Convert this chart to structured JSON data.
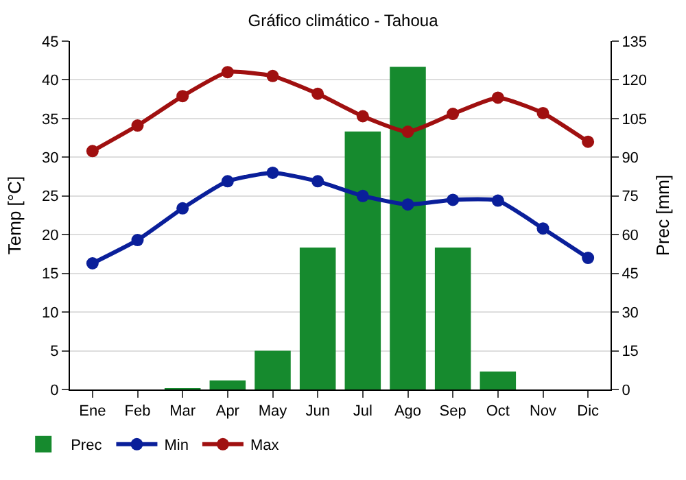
{
  "chart_data": {
    "type": "line",
    "title": "Gráfico climático - Tahoua",
    "ylabel": "Temp [°C]",
    "y2label": "Prec [mm]",
    "categories": [
      "Ene",
      "Feb",
      "Mar",
      "Apr",
      "May",
      "Jun",
      "Jul",
      "Ago",
      "Sep",
      "Oct",
      "Nov",
      "Dic"
    ],
    "series": [
      {
        "name": "Prec",
        "type": "bar",
        "axis": "y2",
        "color": "#168a2e",
        "values": [
          0,
          0,
          0.5,
          3.5,
          15,
          55,
          100,
          125,
          55,
          7,
          0,
          0
        ]
      },
      {
        "name": "Min",
        "color": "#0a1f9a",
        "values": [
          16.3,
          19.3,
          23.4,
          26.9,
          28.0,
          26.9,
          25.0,
          23.9,
          24.5,
          24.4,
          20.8,
          17.0
        ]
      },
      {
        "name": "Max",
        "color": "#a01010",
        "values": [
          30.8,
          34.1,
          37.9,
          41.0,
          40.5,
          38.2,
          35.3,
          33.3,
          35.6,
          37.7,
          35.7,
          32.0
        ]
      }
    ],
    "ylim": [
      0,
      45
    ],
    "yticks": [
      0,
      5,
      10,
      15,
      20,
      25,
      30,
      35,
      40,
      45
    ],
    "y2lim": [
      0,
      135
    ],
    "y2ticks": [
      0,
      15,
      30,
      45,
      60,
      75,
      90,
      105,
      120,
      135
    ],
    "grid": "y",
    "legend": "bottom left",
    "marker": "circle",
    "line_style": "solid"
  }
}
